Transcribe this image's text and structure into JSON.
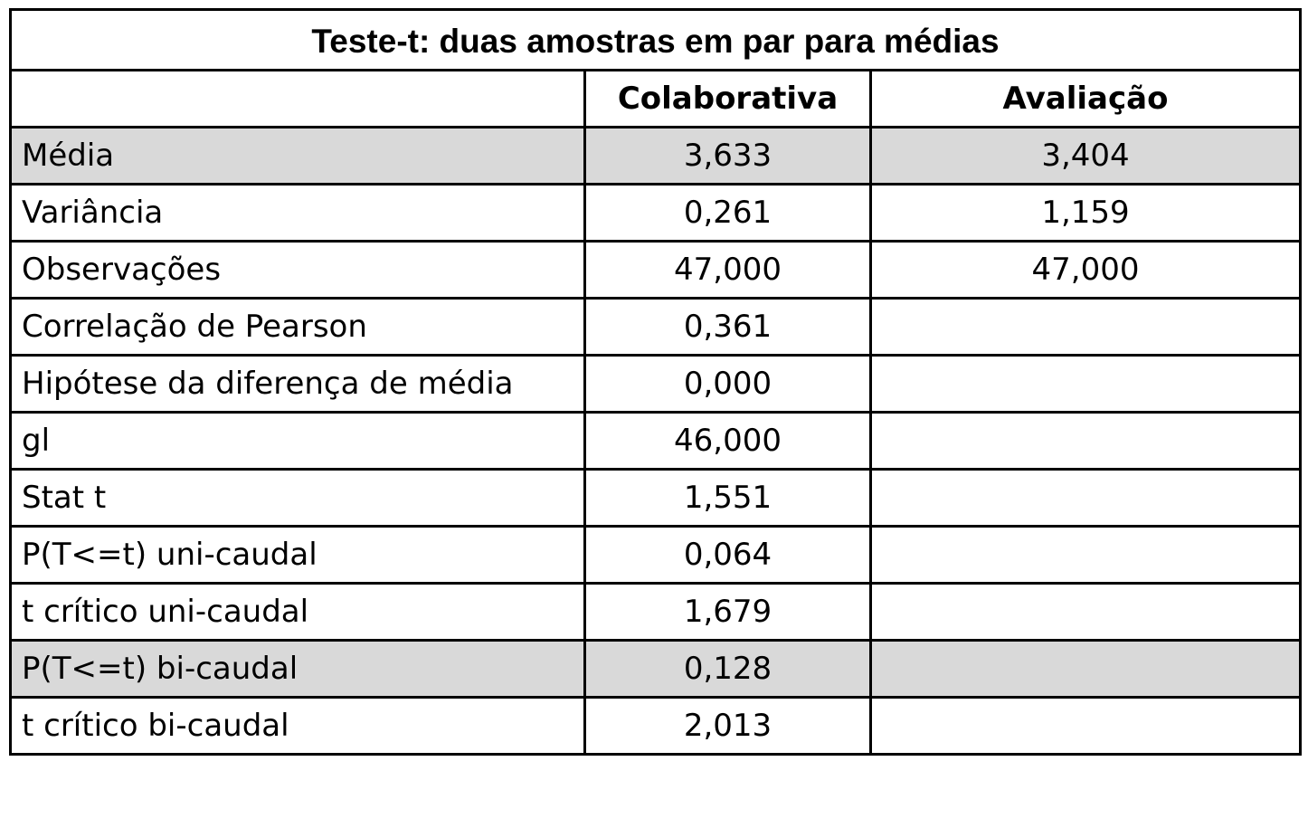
{
  "table": {
    "title": "Teste-t: duas amostras em par para médias",
    "headers": [
      "",
      "Colaborativa",
      "Avaliação"
    ],
    "highlight_color": "#d9d9d9",
    "rows": [
      {
        "label": "Média",
        "col1": "3,633",
        "col2": "3,404",
        "shaded": true
      },
      {
        "label": "Variância",
        "col1": "0,261",
        "col2": "1,159",
        "shaded": false
      },
      {
        "label": "Observações",
        "col1": "47,000",
        "col2": "47,000",
        "shaded": false
      },
      {
        "label": "Correlação de Pearson",
        "col1": "0,361",
        "col2": "",
        "shaded": false
      },
      {
        "label": "Hipótese da diferença de média",
        "col1": "0,000",
        "col2": "",
        "shaded": false
      },
      {
        "label": "gl",
        "col1": "46,000",
        "col2": "",
        "shaded": false
      },
      {
        "label": "Stat t",
        "col1": "1,551",
        "col2": "",
        "shaded": false
      },
      {
        "label": "P(T<=t) uni-caudal",
        "col1": "0,064",
        "col2": "",
        "shaded": false
      },
      {
        "label": "t crítico uni-caudal",
        "col1": "1,679",
        "col2": "",
        "shaded": false
      },
      {
        "label": "P(T<=t) bi-caudal",
        "col1": "0,128",
        "col2": "",
        "shaded": true
      },
      {
        "label": "t crítico bi-caudal",
        "col1": "2,013",
        "col2": "",
        "shaded": false
      }
    ]
  }
}
